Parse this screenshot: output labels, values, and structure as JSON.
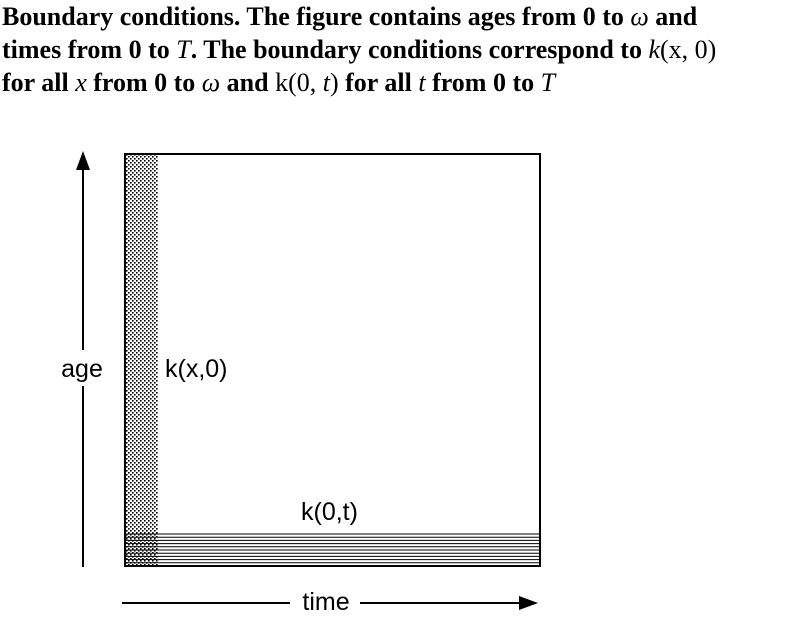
{
  "caption": {
    "line1": {
      "part1": "Boundary conditions. The figure contains ages from 0 to ",
      "omega": "ω",
      "part2": " and"
    },
    "line2": {
      "part1": "times from 0 to ",
      "T": "T",
      "part2": ". The boundary conditions correspond to ",
      "k": "k",
      "args": "(x, 0)"
    },
    "line3": {
      "part1": "for all ",
      "x": "x",
      "part2": " from 0 to ",
      "omega": "ω",
      "part3": " and ",
      "k": "k",
      "paren_open": "(0, ",
      "t": "t",
      "paren_close": ")",
      "part4": " for all ",
      "t2": "t",
      "part5": " from 0 to ",
      "T": "T"
    }
  },
  "diagram": {
    "age_label": "age",
    "time_label": "time",
    "age_boundary_label": "k(x,0)",
    "time_boundary_label": "k(0,t)"
  },
  "colors": {
    "ink": "#000000",
    "background": "#ffffff"
  }
}
